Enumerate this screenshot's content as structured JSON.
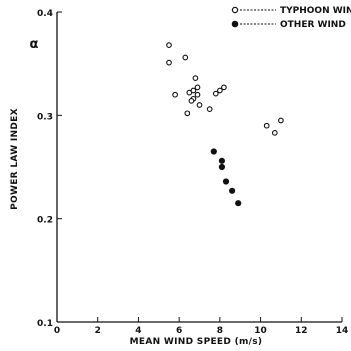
{
  "chart_data": {
    "type": "scatter",
    "xlabel": "MEAN WIND SPEED (m/s)",
    "ylabel": "POWER LAW INDEX",
    "y_symbol": "α",
    "xlim": [
      0,
      14
    ],
    "ylim": [
      0.1,
      0.4
    ],
    "x_ticks": [
      0,
      2,
      4,
      6,
      8,
      10,
      12,
      14
    ],
    "x_tick_labels": [
      "0",
      "2",
      "4",
      "6",
      "8",
      "10",
      "12",
      "14"
    ],
    "y_ticks": [
      0.1,
      0.2,
      0.3,
      0.4
    ],
    "y_tick_labels": [
      "0.1",
      "0.2",
      "0.3",
      "0.4"
    ],
    "grid": false,
    "legend_position": "top-right",
    "series": [
      {
        "name": "TYPHOON WIND",
        "marker": "open-circle",
        "x": [
          5.5,
          5.5,
          6.3,
          5.8,
          6.8,
          6.9,
          6.5,
          6.7,
          6.9,
          6.7,
          7.0,
          6.6,
          7.5,
          7.8,
          8.0,
          8.2,
          6.4,
          10.3,
          10.7,
          11.0
        ],
        "y": [
          0.368,
          0.351,
          0.356,
          0.32,
          0.336,
          0.327,
          0.322,
          0.324,
          0.32,
          0.316,
          0.31,
          0.314,
          0.306,
          0.321,
          0.324,
          0.327,
          0.302,
          0.29,
          0.283,
          0.295
        ]
      },
      {
        "name": "OTHER WIND",
        "marker": "filled-circle",
        "x": [
          7.7,
          8.1,
          8.1,
          8.3,
          8.6,
          8.9
        ],
        "y": [
          0.265,
          0.256,
          0.25,
          0.236,
          0.227,
          0.215
        ]
      }
    ]
  }
}
